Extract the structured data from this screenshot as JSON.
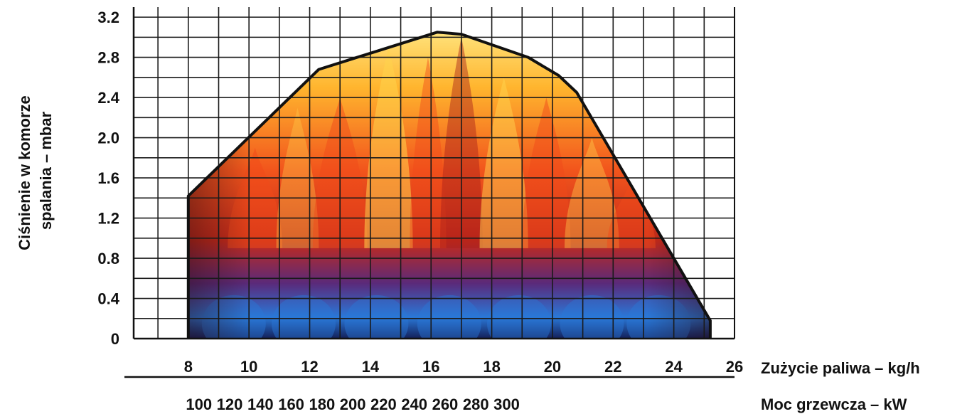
{
  "chart_data": {
    "type": "area",
    "ylabel_line1": "Ciśnienie w komorze",
    "ylabel_line2": "spalania – mbar",
    "xlabel_primary": "Zużycie paliwa – kg/h",
    "xlabel_secondary": "Moc grzewcza – kW",
    "y_ticks": [
      "0",
      "0.4",
      "0.8",
      "1.2",
      "1.6",
      "2.0",
      "2.4",
      "2.8",
      "3.2"
    ],
    "ylim": [
      0,
      3.3
    ],
    "x_ticks": [
      "8",
      "10",
      "12",
      "14",
      "16",
      "18",
      "20",
      "22",
      "24",
      "26"
    ],
    "xlim": [
      6.2,
      26
    ],
    "x2_ticks": [
      "100",
      "120",
      "140",
      "160",
      "180",
      "200",
      "220",
      "240",
      "260",
      "280",
      "300"
    ],
    "grid": true,
    "working_range": {
      "x": [
        8.0,
        8.0,
        12.3,
        16.2,
        17.0,
        19.2,
        20.2,
        20.8,
        25.2,
        25.2
      ],
      "y": [
        0,
        1.42,
        2.68,
        3.05,
        3.03,
        2.8,
        2.62,
        2.45,
        0.18,
        0
      ]
    },
    "colors": {
      "outline": "#111111",
      "flame_top": "#ffd34d",
      "flame_mid": "#f04a1a",
      "flame_base": "#2a78d8"
    }
  }
}
